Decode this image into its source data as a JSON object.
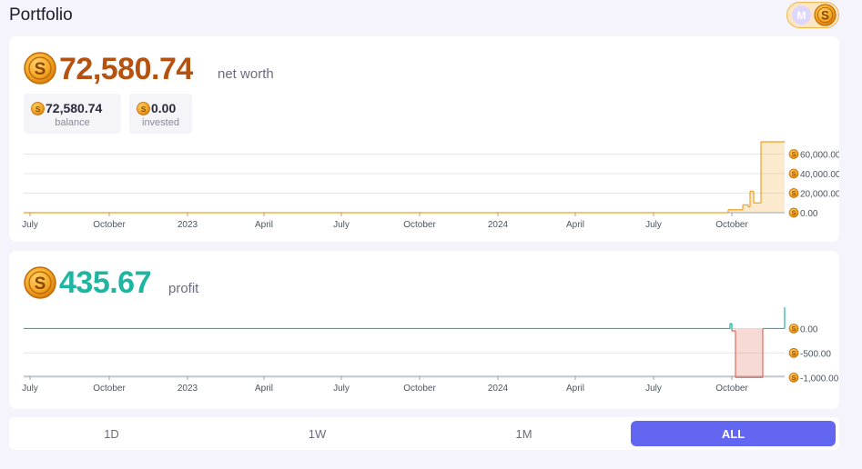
{
  "header": {
    "title": "Portfolio",
    "toggle_left_letter": "M",
    "toggle_right_letter": "S"
  },
  "net_worth": {
    "value": "72,580.74",
    "label": "net worth",
    "balance": {
      "value": "72,580.74",
      "label": "balance"
    },
    "invested": {
      "value": "0.00",
      "label": "invested"
    }
  },
  "profit": {
    "value": "435.67",
    "label": "profit"
  },
  "coin_letter": "S",
  "colors": {
    "net": "#b5520f",
    "profit": "#1fb5a3",
    "loss": "#e06b5a",
    "accent": "#6366f1",
    "coin": "#f0a020"
  },
  "chart_data": [
    {
      "type": "area",
      "x_ticks": [
        "July",
        "October",
        "2023",
        "April",
        "July",
        "October",
        "2024",
        "April",
        "July",
        "October"
      ],
      "y_ticks": [
        "60,000.00",
        "40,000.00",
        "20,000.00",
        "0.00"
      ],
      "ylim": [
        0,
        72580.74
      ],
      "grid": true,
      "series": [
        {
          "values": [
            0,
            0,
            0,
            0,
            0,
            0,
            0,
            0,
            0,
            3000,
            8000,
            6000,
            22000,
            10000,
            72580.74,
            72580.74
          ]
        }
      ]
    },
    {
      "type": "area",
      "x_ticks": [
        "July",
        "October",
        "2023",
        "April",
        "July",
        "October",
        "2024",
        "April",
        "July",
        "October"
      ],
      "y_ticks": [
        "0.00",
        "-500.00",
        "-1,000.00"
      ],
      "ylim": [
        -1050,
        435.67
      ],
      "grid": true,
      "series": [
        {
          "values": [
            0,
            0,
            0,
            0,
            0,
            0,
            0,
            0,
            0,
            100,
            -50,
            -1000,
            -1000,
            0,
            435.67,
            435.67
          ]
        }
      ]
    }
  ],
  "range": {
    "options": [
      "1D",
      "1W",
      "1M",
      "ALL"
    ],
    "selected": "ALL"
  }
}
